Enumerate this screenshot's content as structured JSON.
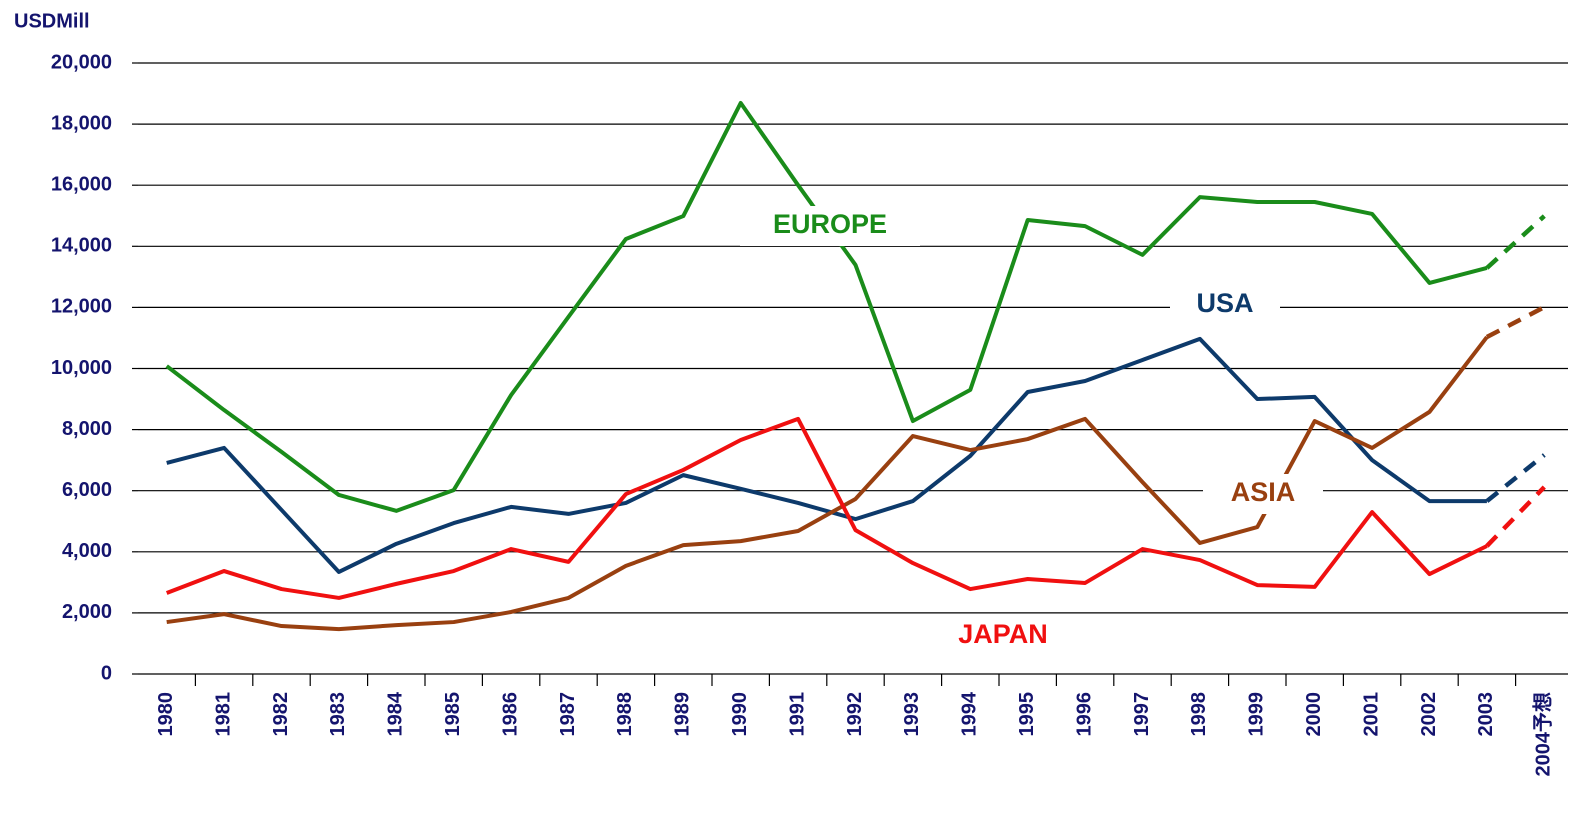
{
  "chart_data": {
    "type": "line",
    "y_axis_label": "USDMill",
    "categories": [
      "1980",
      "1981",
      "1982",
      "1983",
      "1984",
      "1985",
      "1986",
      "1987",
      "1988",
      "1989",
      "1990",
      "1991",
      "1992",
      "1993",
      "1994",
      "1995",
      "1996",
      "1997",
      "1998",
      "1999",
      "2000",
      "2001",
      "2002",
      "2003",
      "2004予想"
    ],
    "forecast_last": true,
    "series": [
      {
        "name": "EUROPE",
        "color": "#1a8c1a",
        "values": [
          10080,
          8640,
          7270,
          5860,
          5340,
          6020,
          9130,
          11690,
          14240,
          14990,
          18690,
          16000,
          13390,
          8280,
          9300,
          14860,
          14660,
          13720,
          15610,
          15450,
          15450,
          15060,
          12800,
          13290,
          14990
        ]
      },
      {
        "name": "USA",
        "color": "#0d3a6b",
        "values": [
          6910,
          7400,
          5370,
          3340,
          4260,
          4940,
          5470,
          5240,
          5600,
          6510,
          6060,
          5600,
          5070,
          5660,
          7140,
          9230,
          9590,
          10280,
          10970,
          9000,
          9070,
          7000,
          5660,
          5660,
          7170
        ]
      },
      {
        "name": "ASIA",
        "color": "#994010",
        "values": [
          1700,
          1960,
          1570,
          1470,
          1600,
          1700,
          2030,
          2490,
          3540,
          4220,
          4350,
          4680,
          5730,
          7790,
          7330,
          7690,
          8350,
          6280,
          4290,
          4810,
          8280,
          7400,
          8580,
          11030,
          12010
        ]
      },
      {
        "name": "JAPAN",
        "color": "#f01010",
        "values": [
          2650,
          3370,
          2780,
          2490,
          2950,
          3370,
          4090,
          3670,
          5890,
          6680,
          7660,
          8350,
          4710,
          3630,
          2780,
          3110,
          2980,
          4090,
          3730,
          2910,
          2850,
          5300,
          3270,
          4190,
          6120
        ]
      }
    ],
    "ylim": [
      0,
      20000
    ],
    "yticks": [
      0,
      {
        "value": 2000,
        "label": "2,000"
      },
      {
        "value": 4000,
        "label": "4,000"
      },
      {
        "value": 6000,
        "label": "6,000"
      },
      {
        "value": 8000,
        "label": "8,000"
      },
      {
        "value": 10000,
        "label": "10,000"
      },
      {
        "value": 12000,
        "label": "12,000"
      },
      {
        "value": 14000,
        "label": "14,000"
      },
      {
        "value": 16000,
        "label": "16,000"
      },
      {
        "value": 18000,
        "label": "18,000"
      },
      {
        "value": 20000,
        "label": "20,000"
      }
    ],
    "grid": true
  }
}
